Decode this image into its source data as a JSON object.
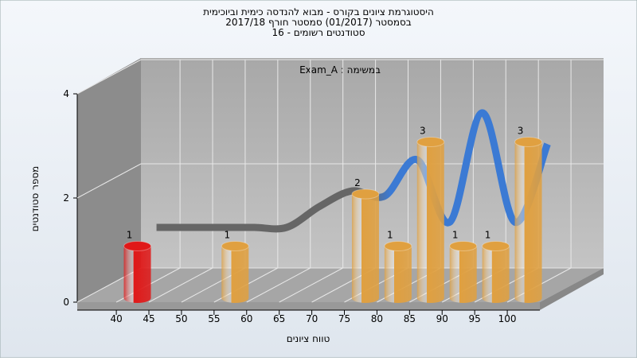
{
  "chart_data": {
    "type": "histogram",
    "title": [
      "היסטוגרמת ציונים בקורס - מבוא להנדסה כימית וביוכימית",
      "בסמסטר  (01/2017)  סמסטר חורף 2017/18",
      "סטודנטים רשומים - 16"
    ],
    "annotation": "Exam_A : במשימה",
    "x_label": "טווח ציונים",
    "y_label": "מספר סטודנטים",
    "bins": [
      40,
      45,
      50,
      55,
      60,
      65,
      70,
      75,
      80,
      85,
      90,
      95,
      100,
      105
    ],
    "counts": [
      1,
      0,
      0,
      1,
      0,
      0,
      0,
      2,
      1,
      3,
      1,
      1,
      3
    ],
    "colors": [
      "#e01818",
      "#e0a040",
      "#e0a040",
      "#e0a040",
      "#e0a040",
      "#e0a040",
      "#e0a040",
      "#e0a040",
      "#e0a040",
      "#e0a040",
      "#e0a040",
      "#e0a040",
      "#e0a040"
    ],
    "trend": {
      "values": [
        1.1,
        1.1,
        1.1,
        1.1,
        1.1,
        1.5,
        1.8,
        1.7,
        2.4,
        1.2,
        3.3,
        1.2,
        2.7
      ],
      "colors": [
        "#666666",
        "#3b7ad4"
      ]
    },
    "xlim": [
      34,
      105
    ],
    "xticks": [
      40,
      45,
      50,
      55,
      60,
      65,
      70,
      75,
      80,
      85,
      90,
      95,
      100
    ],
    "ylim": [
      0,
      4
    ],
    "yticks": [
      0,
      2,
      4
    ],
    "grid": true
  }
}
